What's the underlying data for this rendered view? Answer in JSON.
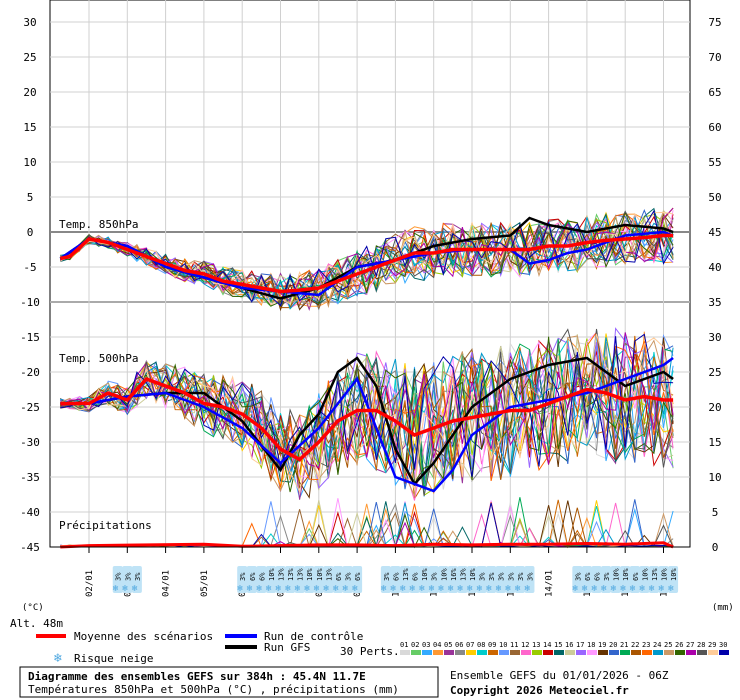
{
  "chart_data": {
    "type": "line",
    "title": "Diagramme des ensembles GEFS sur 384h : 45.4N 11.7E",
    "subtitle": "Températures 850hPa et 500hPa (°C) , précipitations (mm)",
    "run_info": "Ensemble GEFS du 01/01/2026 - 06Z",
    "copyright": "Copyright 2026 Meteociel.fr",
    "altitude_label": "Alt. 48m",
    "left_unit": "(°C)",
    "right_unit": "(mm)",
    "panels": {
      "t850": "Temp. 850hPa",
      "t500": "Temp. 500hPa",
      "precip": "Précipitations"
    },
    "left_ticks": [
      "30",
      "25",
      "20",
      "15",
      "10",
      "5",
      "0",
      "-5",
      "-10",
      "-15",
      "-20",
      "-25",
      "-30",
      "-35",
      "-40",
      "-45"
    ],
    "right_ticks": [
      "75",
      "70",
      "65",
      "60",
      "55",
      "50",
      "45",
      "40",
      "35",
      "30",
      "25",
      "20",
      "15",
      "10",
      "5",
      "0"
    ],
    "x_ticks": [
      "02/01",
      "03/01",
      "04/01",
      "05/01",
      "06/01",
      "07/01",
      "08/01",
      "09/01",
      "10/01",
      "11/01",
      "12/01",
      "13/01",
      "14/01",
      "15/01",
      "16/01",
      "17/01"
    ],
    "legend": {
      "mean": "Moyenne des scénarios",
      "control": "Run de contrôle",
      "gfs": "Run GFS",
      "snow": "Risque neige",
      "perts_label": "30 Perts.",
      "perts": [
        "01",
        "02",
        "03",
        "04",
        "05",
        "06",
        "07",
        "08",
        "09",
        "10",
        "11",
        "12",
        "13",
        "14",
        "15",
        "16",
        "17",
        "18",
        "19",
        "20",
        "21",
        "22",
        "23",
        "24",
        "25",
        "26",
        "27",
        "28",
        "29",
        "30"
      ],
      "pert_colors": [
        "#d9d9d9",
        "#66cc66",
        "#33aaff",
        "#ff9933",
        "#993399",
        "#888888",
        "#ffcc00",
        "#00cccc",
        "#cc6600",
        "#6699ff",
        "#996633",
        "#ff66cc",
        "#99cc00",
        "#cc0000",
        "#006666",
        "#cccc99",
        "#9966ff",
        "#ff99ff",
        "#663300",
        "#3366cc",
        "#00aa55",
        "#aa5500",
        "#ff6600",
        "#0099cc",
        "#cc9966",
        "#336600",
        "#aa00aa",
        "#555555",
        "#ffcc99",
        "#0000aa"
      ]
    },
    "colors": {
      "mean": "#ff0000",
      "control": "#0000ff",
      "gfs": "#000000",
      "snow": "#87ceeb"
    },
    "snow_risk": [
      {
        "t": 0.75,
        "pct": "3%"
      },
      {
        "t": 1.0,
        "pct": "3%"
      },
      {
        "t": 1.25,
        "pct": "3%"
      },
      {
        "t": 4.0,
        "pct": "3%"
      },
      {
        "t": 4.25,
        "pct": "6%"
      },
      {
        "t": 4.5,
        "pct": "6%"
      },
      {
        "t": 4.75,
        "pct": "10%"
      },
      {
        "t": 5.0,
        "pct": "13%"
      },
      {
        "t": 5.25,
        "pct": "13%"
      },
      {
        "t": 5.5,
        "pct": "13%"
      },
      {
        "t": 5.75,
        "pct": "10%"
      },
      {
        "t": 6.0,
        "pct": "10%"
      },
      {
        "t": 6.25,
        "pct": "13%"
      },
      {
        "t": 6.5,
        "pct": "6%"
      },
      {
        "t": 6.75,
        "pct": "3%"
      },
      {
        "t": 7.0,
        "pct": "6%"
      },
      {
        "t": 7.75,
        "pct": "3%"
      },
      {
        "t": 8.0,
        "pct": "6%"
      },
      {
        "t": 8.25,
        "pct": "13%"
      },
      {
        "t": 8.5,
        "pct": "6%"
      },
      {
        "t": 8.75,
        "pct": "10%"
      },
      {
        "t": 9.0,
        "pct": "3%"
      },
      {
        "t": 9.25,
        "pct": "10%"
      },
      {
        "t": 9.5,
        "pct": "16%"
      },
      {
        "t": 9.75,
        "pct": "13%"
      },
      {
        "t": 10.0,
        "pct": "10%"
      },
      {
        "t": 10.25,
        "pct": "3%"
      },
      {
        "t": 10.5,
        "pct": "3%"
      },
      {
        "t": 10.75,
        "pct": "3%"
      },
      {
        "t": 11.0,
        "pct": "3%"
      },
      {
        "t": 11.25,
        "pct": "3%"
      },
      {
        "t": 11.5,
        "pct": "3%"
      },
      {
        "t": 12.75,
        "pct": "3%"
      },
      {
        "t": 13.0,
        "pct": "6%"
      },
      {
        "t": 13.25,
        "pct": "6%"
      },
      {
        "t": 13.5,
        "pct": "3%"
      },
      {
        "t": 13.75,
        "pct": "10%"
      },
      {
        "t": 14.0,
        "pct": "10%"
      },
      {
        "t": 14.25,
        "pct": "6%"
      },
      {
        "t": 14.5,
        "pct": "10%"
      },
      {
        "t": 14.75,
        "pct": "13%"
      },
      {
        "t": 15.0,
        "pct": "10%"
      },
      {
        "t": 15.25,
        "pct": "10%"
      }
    ],
    "t850_mean": [
      [
        -0.75,
        -3.8
      ],
      [
        -0.5,
        -3.5
      ],
      [
        0,
        -1
      ],
      [
        0.5,
        -1.5
      ],
      [
        1,
        -2.5
      ],
      [
        1.5,
        -3.5
      ],
      [
        2,
        -4.5
      ],
      [
        2.5,
        -5.5
      ],
      [
        3,
        -6
      ],
      [
        3.5,
        -7
      ],
      [
        4,
        -7.5
      ],
      [
        4.5,
        -8
      ],
      [
        5,
        -8.5
      ],
      [
        5.5,
        -8.3
      ],
      [
        6,
        -8
      ],
      [
        6.5,
        -7
      ],
      [
        7,
        -6
      ],
      [
        7.5,
        -5
      ],
      [
        8,
        -4
      ],
      [
        8.5,
        -3
      ],
      [
        9,
        -3
      ],
      [
        9.5,
        -2.5
      ],
      [
        10,
        -2.5
      ],
      [
        10.5,
        -2.5
      ],
      [
        11,
        -2.5
      ],
      [
        11.5,
        -2.5
      ],
      [
        12,
        -2
      ],
      [
        12.5,
        -2
      ],
      [
        13,
        -1.5
      ],
      [
        13.5,
        -1.2
      ],
      [
        14,
        -1
      ],
      [
        14.5,
        -0.8
      ],
      [
        15,
        -0.5
      ],
      [
        15.25,
        -0.5
      ]
    ],
    "t850_control": [
      [
        -0.75,
        -3.8
      ],
      [
        0,
        -1
      ],
      [
        1,
        -2
      ],
      [
        2,
        -5
      ],
      [
        3,
        -6.5
      ],
      [
        4,
        -8
      ],
      [
        5,
        -8.5
      ],
      [
        6,
        -9
      ],
      [
        7,
        -5
      ],
      [
        8,
        -4
      ],
      [
        9,
        -3
      ],
      [
        10,
        -2.5
      ],
      [
        11,
        -2.5
      ],
      [
        11.5,
        -4.5
      ],
      [
        12,
        -4
      ],
      [
        12.5,
        -3
      ],
      [
        13,
        -2.5
      ],
      [
        14,
        -0.5
      ],
      [
        15,
        0
      ],
      [
        15.25,
        -0.5
      ]
    ],
    "t850_gfs": [
      [
        -0.75,
        -3.8
      ],
      [
        0,
        -1
      ],
      [
        1,
        -2
      ],
      [
        2,
        -5
      ],
      [
        3,
        -6.5
      ],
      [
        4,
        -8
      ],
      [
        5,
        -9.5
      ],
      [
        6,
        -8
      ],
      [
        7,
        -5
      ],
      [
        8,
        -4
      ],
      [
        9,
        -2
      ],
      [
        10,
        -1
      ],
      [
        11,
        -0.5
      ],
      [
        11.5,
        2
      ],
      [
        12,
        1
      ],
      [
        13,
        0
      ],
      [
        14,
        1
      ],
      [
        15,
        0.5
      ],
      [
        15.25,
        0
      ]
    ],
    "t500_mean": [
      [
        -0.75,
        -24.5
      ],
      [
        0,
        -24.5
      ],
      [
        0.5,
        -23
      ],
      [
        1,
        -24
      ],
      [
        1.5,
        -21
      ],
      [
        2,
        -22
      ],
      [
        2.5,
        -23
      ],
      [
        3,
        -24.5
      ],
      [
        3.5,
        -25
      ],
      [
        4,
        -26
      ],
      [
        4.5,
        -28
      ],
      [
        5,
        -31
      ],
      [
        5.5,
        -32.5
      ],
      [
        6,
        -30
      ],
      [
        6.5,
        -27
      ],
      [
        7,
        -25.5
      ],
      [
        7.5,
        -25.5
      ],
      [
        8,
        -27
      ],
      [
        8.5,
        -29
      ],
      [
        9,
        -28
      ],
      [
        9.5,
        -27
      ],
      [
        10,
        -26.5
      ],
      [
        10.5,
        -26
      ],
      [
        11,
        -25.5
      ],
      [
        11.5,
        -25.5
      ],
      [
        12,
        -24.5
      ],
      [
        12.5,
        -23.5
      ],
      [
        13,
        -22.5
      ],
      [
        13.5,
        -23
      ],
      [
        14,
        -24
      ],
      [
        14.5,
        -23.5
      ],
      [
        15,
        -24
      ],
      [
        15.25,
        -24
      ]
    ],
    "t500_control": [
      [
        -0.75,
        -24.5
      ],
      [
        0,
        -24.5
      ],
      [
        1,
        -23.5
      ],
      [
        2,
        -23
      ],
      [
        3,
        -25
      ],
      [
        4,
        -28
      ],
      [
        5,
        -33
      ],
      [
        6,
        -28
      ],
      [
        7,
        -21
      ],
      [
        8,
        -35
      ],
      [
        9,
        -37
      ],
      [
        9.5,
        -34
      ],
      [
        10,
        -29
      ],
      [
        11,
        -25
      ],
      [
        12,
        -24
      ],
      [
        13,
        -23
      ],
      [
        14,
        -21
      ],
      [
        15,
        -19
      ],
      [
        15.25,
        -18
      ]
    ],
    "t500_gfs": [
      [
        -0.75,
        -24.5
      ],
      [
        0,
        -24.5
      ],
      [
        1,
        -23.5
      ],
      [
        2,
        -23
      ],
      [
        3,
        -23
      ],
      [
        4,
        -27
      ],
      [
        5,
        -34
      ],
      [
        5.5,
        -29
      ],
      [
        6,
        -26
      ],
      [
        6.5,
        -20
      ],
      [
        7,
        -18
      ],
      [
        7.5,
        -22
      ],
      [
        8,
        -31
      ],
      [
        8.5,
        -36
      ],
      [
        9,
        -33
      ],
      [
        10,
        -25
      ],
      [
        11,
        -21
      ],
      [
        12,
        -19
      ],
      [
        13,
        -18
      ],
      [
        14,
        -22
      ],
      [
        15,
        -20
      ],
      [
        15.25,
        -21
      ]
    ],
    "precip_mean": [
      [
        -0.75,
        0
      ],
      [
        0,
        0.2
      ],
      [
        3,
        0.4
      ],
      [
        4,
        0.1
      ],
      [
        5,
        0.2
      ],
      [
        6,
        0.3
      ],
      [
        7,
        0.3
      ],
      [
        8,
        0.2
      ],
      [
        9,
        0.4
      ],
      [
        10,
        0.3
      ],
      [
        11,
        0.4
      ],
      [
        12,
        0.4
      ],
      [
        13,
        0.5
      ],
      [
        14,
        0.4
      ],
      [
        15,
        0.6
      ],
      [
        15.25,
        0
      ]
    ]
  }
}
